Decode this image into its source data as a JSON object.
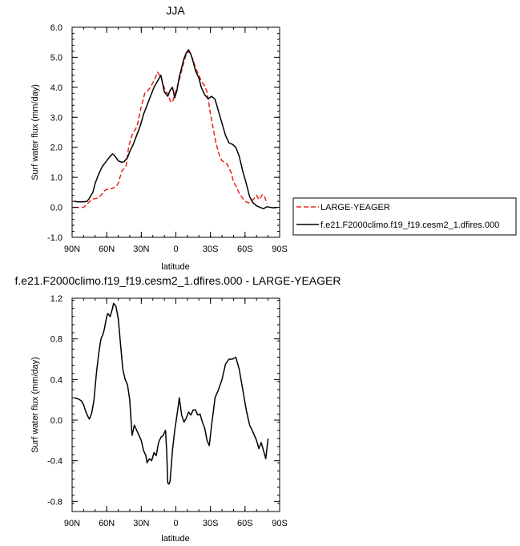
{
  "chart_data": [
    {
      "type": "line",
      "title": "JJA",
      "xlabel": "latitude",
      "ylabel": "Surf water flux (mm/day)",
      "xlim": [
        90,
        -90
      ],
      "ylim": [
        -1.0,
        6.0
      ],
      "x_ticks": [
        90,
        60,
        30,
        0,
        -30,
        -60,
        -90
      ],
      "x_tick_labels": [
        "90N",
        "60N",
        "30N",
        "0",
        "30S",
        "60S",
        "90S"
      ],
      "y_ticks": [
        -1.0,
        0.0,
        1.0,
        2.0,
        3.0,
        4.0,
        5.0,
        6.0
      ],
      "y_tick_labels": [
        "-1.0",
        "0.0",
        "1.0",
        "2.0",
        "3.0",
        "4.0",
        "5.0",
        "6.0"
      ],
      "legend_position": "right",
      "series": [
        {
          "name": "LARGE-YEAGER",
          "color": "#e8231c",
          "dash": "dashed",
          "x": [
            88,
            80,
            76,
            72,
            68,
            65,
            62,
            60,
            57,
            54,
            52,
            50,
            47,
            45,
            43,
            41,
            39,
            37,
            35,
            33,
            31,
            29,
            27,
            25,
            22,
            20,
            18,
            16,
            13,
            11,
            9,
            7,
            5,
            3,
            1,
            -1,
            -3,
            -5,
            -7,
            -9,
            -11,
            -13,
            -15,
            -17,
            -20,
            -22,
            -25,
            -27,
            -30,
            -33,
            -35,
            -38,
            -40,
            -43,
            -45,
            -48,
            -50,
            -53,
            -55,
            -58,
            -60,
            -63,
            -65,
            -68,
            -70,
            -72,
            -75,
            -77,
            -79
          ],
          "values": [
            0.0,
            0.0,
            0.15,
            0.28,
            0.3,
            0.4,
            0.55,
            0.6,
            0.6,
            0.65,
            0.68,
            0.8,
            1.2,
            1.3,
            1.4,
            2.0,
            2.3,
            2.5,
            2.6,
            2.8,
            3.2,
            3.5,
            3.8,
            3.85,
            4.0,
            4.15,
            4.3,
            4.5,
            4.35,
            4.1,
            3.85,
            3.8,
            3.55,
            3.5,
            3.75,
            4.0,
            4.25,
            4.55,
            4.85,
            5.1,
            5.2,
            5.1,
            4.9,
            4.65,
            4.4,
            4.2,
            4.05,
            3.85,
            3.1,
            2.5,
            2.1,
            1.7,
            1.55,
            1.5,
            1.4,
            1.15,
            0.85,
            0.65,
            0.45,
            0.3,
            0.2,
            0.15,
            0.18,
            0.3,
            0.4,
            0.25,
            0.42,
            0.35,
            0.12
          ]
        },
        {
          "name": "f.e21.F2000climo.f19_f19.cesm2_1.dfires.000",
          "color": "#000000",
          "dash": "solid",
          "x": [
            88,
            85,
            80,
            77,
            75,
            72,
            70,
            67,
            64,
            61,
            58,
            55,
            53,
            50,
            47,
            45,
            42,
            40,
            37,
            34,
            31,
            28,
            25,
            22,
            19,
            16,
            13,
            10,
            7,
            5,
            3,
            1,
            -1,
            -3,
            -5,
            -7,
            -9,
            -11,
            -13,
            -15,
            -17,
            -20,
            -22,
            -25,
            -28,
            -31,
            -34,
            -37,
            -40,
            -43,
            -46,
            -49,
            -52,
            -55,
            -58,
            -61,
            -64,
            -67,
            -70,
            -73,
            -76,
            -79,
            -82,
            -85,
            -88
          ],
          "values": [
            0.2,
            0.18,
            0.18,
            0.2,
            0.3,
            0.5,
            0.8,
            1.1,
            1.35,
            1.5,
            1.65,
            1.78,
            1.72,
            1.55,
            1.5,
            1.52,
            1.65,
            1.85,
            2.1,
            2.4,
            2.7,
            3.1,
            3.4,
            3.7,
            4.0,
            4.2,
            4.4,
            3.85,
            3.7,
            3.9,
            4.0,
            3.65,
            3.9,
            4.35,
            4.65,
            4.95,
            5.15,
            5.25,
            5.1,
            4.85,
            4.55,
            4.3,
            4.0,
            3.75,
            3.62,
            3.7,
            3.6,
            3.2,
            2.8,
            2.4,
            2.15,
            2.1,
            2.0,
            1.7,
            1.2,
            0.8,
            0.35,
            0.15,
            0.05,
            0.0,
            -0.05,
            0.02,
            0.0,
            -0.02,
            0.0
          ]
        }
      ]
    },
    {
      "type": "line",
      "title": "f.e21.F2000climo.f19_f19.cesm2_1.dfires.000 - LARGE-YEAGER",
      "xlabel": "latitude",
      "ylabel": "Surf water flux (mm/day)",
      "xlim": [
        90,
        -90
      ],
      "ylim": [
        -0.9,
        1.2
      ],
      "x_ticks": [
        90,
        60,
        30,
        0,
        -30,
        -60,
        -90
      ],
      "x_tick_labels": [
        "90N",
        "60N",
        "30N",
        "0",
        "30S",
        "60S",
        "90S"
      ],
      "y_ticks": [
        -0.8,
        -0.4,
        0.0,
        0.4,
        0.8,
        1.2
      ],
      "y_tick_labels": [
        "-0.8",
        "-0.4",
        "0.0",
        "0.4",
        "0.8",
        "1.2"
      ],
      "series": [
        {
          "name": "",
          "color": "#000000",
          "dash": "solid",
          "x": [
            88,
            85,
            82,
            80,
            78,
            76,
            75,
            73,
            71,
            69,
            67,
            65,
            63,
            62,
            60,
            59,
            57,
            55,
            54,
            52,
            50,
            48,
            46,
            44,
            42,
            40,
            38,
            36,
            34,
            32,
            30,
            28,
            26,
            25,
            23,
            21,
            19,
            17,
            15,
            13,
            11,
            9,
            8,
            7,
            6,
            5,
            3,
            1,
            -1,
            -3,
            -5,
            -7,
            -9,
            -11,
            -13,
            -15,
            -17,
            -19,
            -21,
            -23,
            -25,
            -27,
            -29,
            -31,
            -34,
            -37,
            -40,
            -43,
            -46,
            -49,
            -52,
            -55,
            -58,
            -61,
            -64,
            -67,
            -70,
            -72,
            -74,
            -76,
            -78,
            -80
          ],
          "values": [
            0.22,
            0.21,
            0.19,
            0.15,
            0.08,
            0.03,
            0.01,
            0.07,
            0.2,
            0.45,
            0.65,
            0.8,
            0.85,
            0.9,
            1.02,
            1.05,
            1.02,
            1.1,
            1.15,
            1.12,
            1.0,
            0.75,
            0.5,
            0.4,
            0.35,
            0.2,
            -0.15,
            -0.05,
            -0.1,
            -0.15,
            -0.2,
            -0.3,
            -0.35,
            -0.42,
            -0.38,
            -0.4,
            -0.32,
            -0.35,
            -0.22,
            -0.17,
            -0.15,
            -0.1,
            -0.3,
            -0.62,
            -0.63,
            -0.6,
            -0.3,
            -0.1,
            0.05,
            0.22,
            0.05,
            -0.02,
            0.02,
            0.08,
            0.05,
            0.1,
            0.1,
            0.05,
            0.06,
            -0.02,
            -0.08,
            -0.2,
            -0.25,
            -0.05,
            0.22,
            0.3,
            0.4,
            0.55,
            0.6,
            0.6,
            0.62,
            0.5,
            0.3,
            0.1,
            -0.05,
            -0.12,
            -0.2,
            -0.28,
            -0.22,
            -0.3,
            -0.38,
            -0.18
          ]
        }
      ]
    }
  ]
}
